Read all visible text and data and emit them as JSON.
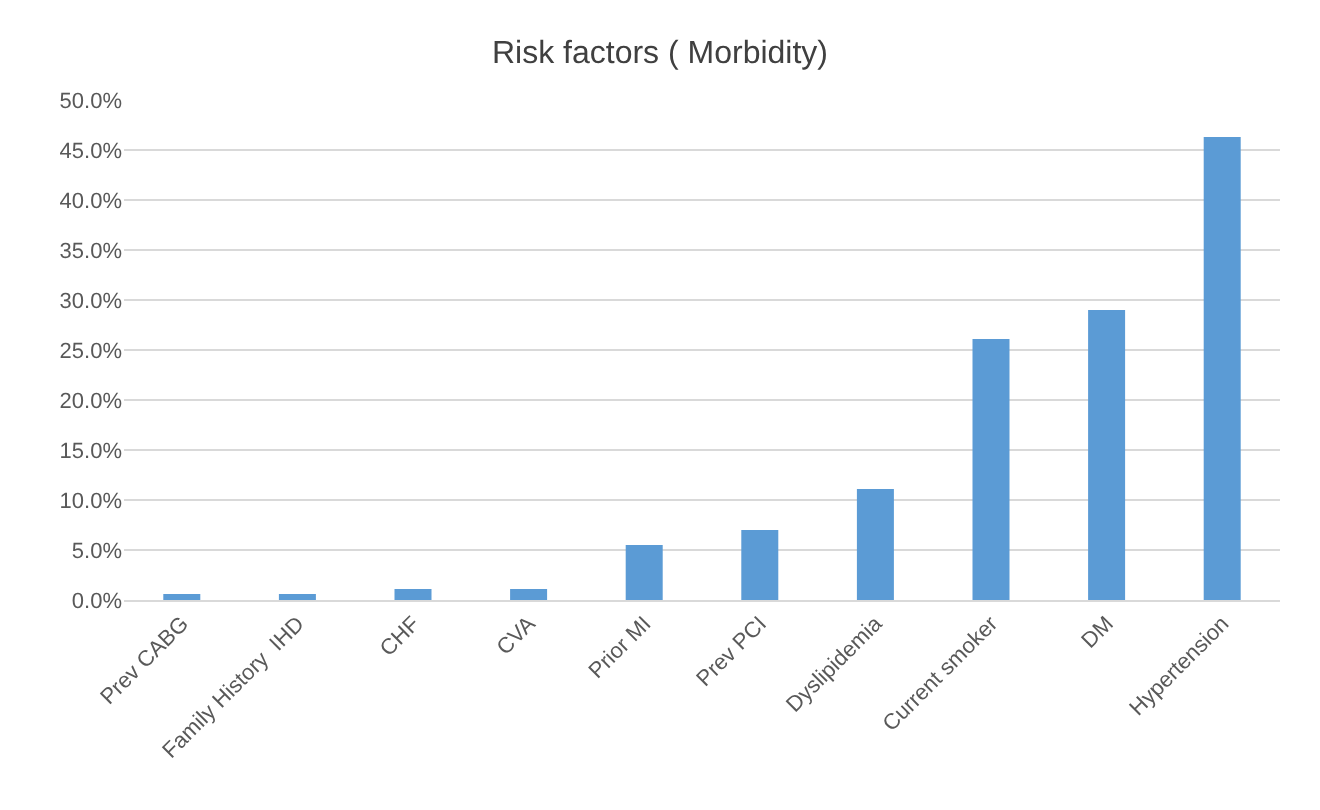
{
  "chart_data": {
    "type": "bar",
    "title": "Risk factors ( Morbidity)",
    "categories": [
      "Prev CABG",
      "Family History  IHD",
      "CHF",
      "CVA",
      "Prior MI",
      "Prev PCI",
      "Dyslipidemia",
      "Current smoker",
      "DM",
      "Hypertension"
    ],
    "values": [
      0.6,
      0.6,
      1.1,
      1.1,
      5.5,
      7.0,
      11.1,
      26.1,
      29.0,
      46.3
    ],
    "color": "#5b9bd5",
    "ylim": [
      0,
      50
    ],
    "yticks": [
      {
        "value": 0,
        "label": "0.0%"
      },
      {
        "value": 5,
        "label": "5.0%"
      },
      {
        "value": 10,
        "label": "10.0%"
      },
      {
        "value": 15,
        "label": "15.0%"
      },
      {
        "value": 20,
        "label": "20.0%"
      },
      {
        "value": 25,
        "label": "25.0%"
      },
      {
        "value": 30,
        "label": "30.0%"
      },
      {
        "value": 35,
        "label": "35.0%"
      },
      {
        "value": 40,
        "label": "40.0%"
      },
      {
        "value": 45,
        "label": "45.0%"
      },
      {
        "value": 50,
        "label": "50.0%"
      }
    ],
    "grid": "y",
    "legend": false
  }
}
